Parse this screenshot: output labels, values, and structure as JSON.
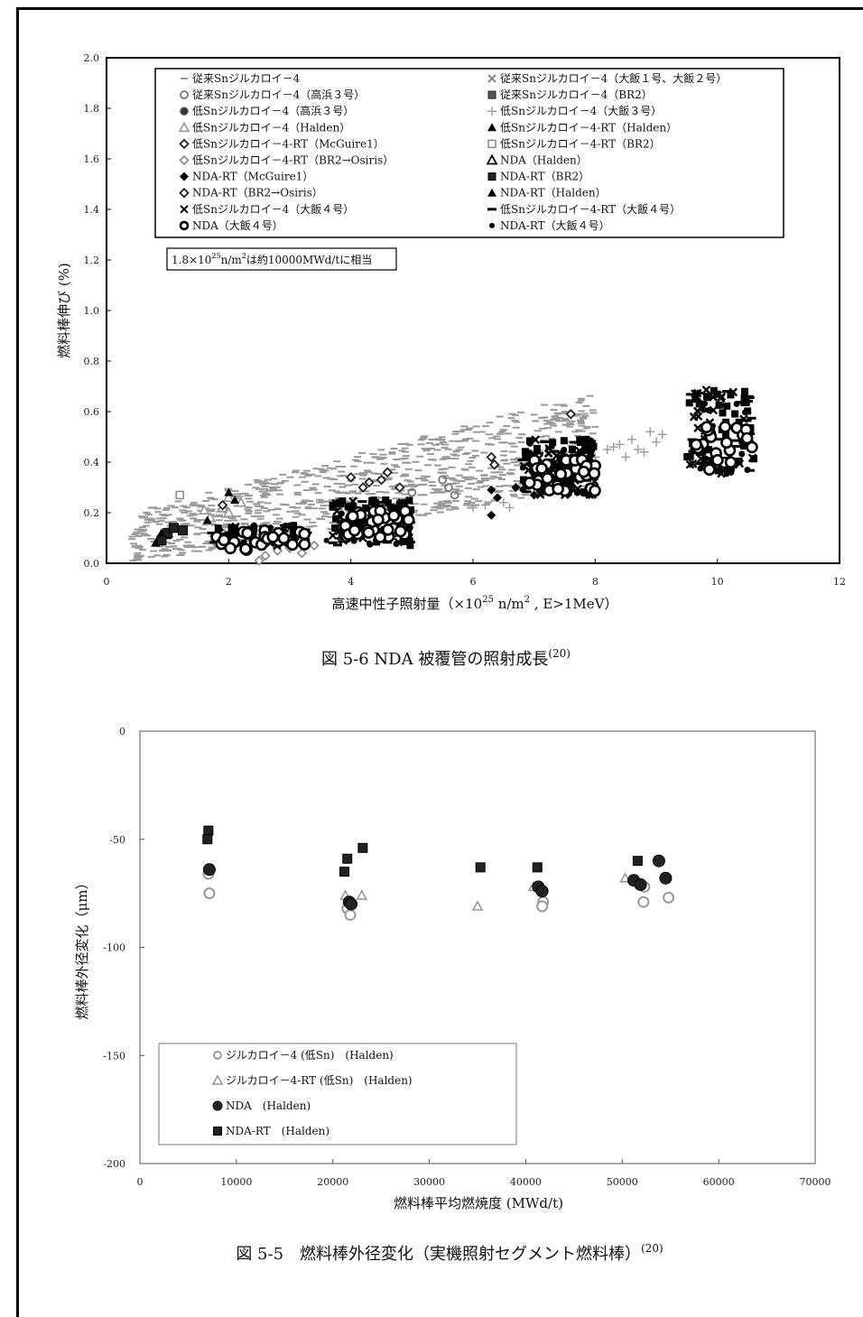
{
  "figure1": {
    "caption": "図 5-6 NDA 被覆管の照射成長",
    "caption_ref": "(20)",
    "chart_data": {
      "type": "scatter",
      "xlabel": "高速中性子照射量（×10",
      "xlabel_sup": "25",
      "xlabel_unit": " n/m",
      "xlabel_sup2": "2",
      "xlabel_tail": " , E>1MeV）",
      "ylabel": "燃料棒伸び (%)",
      "xlim": [
        0,
        12
      ],
      "ylim": [
        0,
        2.0
      ],
      "x_ticks": [
        "0",
        "2",
        "4",
        "6",
        "8",
        "10",
        "12"
      ],
      "y_ticks": [
        "0.0",
        "0.2",
        "0.4",
        "0.6",
        "0.8",
        "1.0",
        "1.2",
        "1.4",
        "1.6",
        "1.8",
        "2.0"
      ],
      "annotation_pre": "1.8×10",
      "annotation_sup": "25",
      "annotation_mid": "n/m",
      "annotation_sup2": "2",
      "annotation_post": "は約10000MWd/tに相当",
      "legend": [
        {
          "label": "従来Snジルカロイ－4",
          "marker": "dash-gray"
        },
        {
          "label": "従来Snジルカロイ－4（大飯１号、大飯２号）",
          "marker": "x-gray"
        },
        {
          "label": "従来Snジルカロイ－4（高浜３号）",
          "marker": "circle-gray"
        },
        {
          "label": "従来Snジルカロイ－4（BR2）",
          "marker": "square-darkgray"
        },
        {
          "label": "低Snジルカロイ－4（高浜３号）",
          "marker": "circle-dark"
        },
        {
          "label": "低Snジルカロイ－4（大飯３号）",
          "marker": "plus-gray"
        },
        {
          "label": "低Snジルカロイ－4（Halden）",
          "marker": "triangle-gray"
        },
        {
          "label": "低Snジルカロイ－4-RT（Halden）",
          "marker": "triangle-black"
        },
        {
          "label": "低Snジルカロイ－4-RT（McGuire1）",
          "marker": "diamond-black-open"
        },
        {
          "label": "低Snジルカロイ－4-RT（BR2）",
          "marker": "square-open-gray"
        },
        {
          "label": "低Snジルカロイ－4-RT（BR2→Osiris）",
          "marker": "diamond-gray-open"
        },
        {
          "label": "NDA（Halden）",
          "marker": "triangle-open"
        },
        {
          "label": "NDA-RT（McGuire1）",
          "marker": "diamond-black"
        },
        {
          "label": "NDA-RT（BR2）",
          "marker": "square-black"
        },
        {
          "label": "NDA-RT（BR2→Osiris）",
          "marker": "diamond-open"
        },
        {
          "label": "NDA-RT（Halden）",
          "marker": "triangle-black"
        },
        {
          "label": "低Snジルカロイ－4（大飯４号）",
          "marker": "x-black"
        },
        {
          "label": "低Snジルカロイ－4-RT（大飯４号）",
          "marker": "dash-black"
        },
        {
          "label": "NDA（大飯４号）",
          "marker": "circle-open-bold"
        },
        {
          "label": "NDA-RT（大飯４号）",
          "marker": "dot-black"
        }
      ],
      "series": [
        {
          "marker": "dash-gray",
          "band": {
            "x": [
              0.4,
              8.0
            ],
            "y_lo_at_x0": 0.0,
            "y_lo_at_x1": 0.3,
            "y_hi_at_x0": 0.2,
            "y_hi_at_x1": 0.68,
            "count": 950
          }
        },
        {
          "marker": "dash-gray",
          "points": [
            [
              7.4,
              0.52
            ],
            [
              7.6,
              0.55
            ],
            [
              7.8,
              0.5
            ],
            [
              8.0,
              0.54
            ]
          ]
        },
        {
          "marker": "circle-gray",
          "points": [
            [
              5.0,
              0.28
            ],
            [
              5.5,
              0.33
            ],
            [
              5.6,
              0.3
            ],
            [
              5.7,
              0.27
            ]
          ]
        },
        {
          "marker": "square-open-gray",
          "points": [
            [
              1.2,
              0.27
            ]
          ]
        },
        {
          "marker": "plus-gray",
          "points": [
            [
              6.0,
              0.22
            ],
            [
              6.2,
              0.23
            ],
            [
              6.5,
              0.24
            ],
            [
              6.6,
              0.22
            ],
            [
              7.0,
              0.43
            ],
            [
              7.5,
              0.44
            ],
            [
              7.8,
              0.4
            ],
            [
              8.0,
              0.42
            ],
            [
              8.2,
              0.45
            ],
            [
              8.4,
              0.47
            ],
            [
              8.6,
              0.49
            ],
            [
              8.7,
              0.45
            ],
            [
              8.9,
              0.52
            ],
            [
              9.0,
              0.48
            ],
            [
              9.1,
              0.51
            ],
            [
              8.8,
              0.44
            ],
            [
              8.5,
              0.42
            ],
            [
              8.3,
              0.46
            ]
          ]
        },
        {
          "marker": "triangle-gray",
          "points": [
            [
              1.6,
              0.21
            ],
            [
              1.9,
              0.22
            ],
            [
              2.0,
              0.2
            ],
            [
              2.2,
              0.24
            ],
            [
              2.0,
              0.26
            ],
            [
              1.7,
              0.18
            ]
          ]
        },
        {
          "marker": "triangle-black",
          "points": [
            [
              0.8,
              0.08
            ],
            [
              0.85,
              0.1
            ],
            [
              0.9,
              0.12
            ],
            [
              1.0,
              0.11
            ],
            [
              1.65,
              0.17
            ],
            [
              2.0,
              0.28
            ],
            [
              2.1,
              0.25
            ]
          ]
        },
        {
          "marker": "square-black",
          "points": [
            [
              1.0,
              0.12
            ],
            [
              1.1,
              0.14
            ],
            [
              1.25,
              0.13
            ],
            [
              0.9,
              0.09
            ]
          ]
        },
        {
          "marker": "diamond-black-open",
          "points": [
            [
              1.9,
              0.23
            ],
            [
              4.0,
              0.34
            ],
            [
              4.2,
              0.3
            ],
            [
              4.3,
              0.32
            ],
            [
              4.5,
              0.33
            ],
            [
              4.6,
              0.36
            ],
            [
              4.8,
              0.3
            ],
            [
              6.3,
              0.42
            ],
            [
              6.35,
              0.39
            ],
            [
              7.6,
              0.59
            ]
          ]
        },
        {
          "marker": "diamond-gray-open",
          "points": [
            [
              2.5,
              0.01
            ],
            [
              2.6,
              0.03
            ],
            [
              2.8,
              0.05
            ],
            [
              3.0,
              0.06
            ],
            [
              3.2,
              0.04
            ],
            [
              3.4,
              0.07
            ]
          ]
        },
        {
          "marker": "diamond-black",
          "points": [
            [
              6.3,
              0.29
            ],
            [
              6.4,
              0.26
            ],
            [
              6.3,
              0.19
            ],
            [
              6.7,
              0.3
            ],
            [
              7.0,
              0.27
            ]
          ]
        },
        {
          "marker": "dot-black",
          "points": [
            [
              3.6,
              0.09
            ],
            [
              3.9,
              0.09
            ],
            [
              4.3,
              0.08
            ]
          ]
        },
        {
          "marker": "cluster-black",
          "clusters": [
            {
              "x": [
                1.7,
                3.3
              ],
              "y": [
                0.07,
                0.15
              ],
              "count": 70
            },
            {
              "x": [
                3.7,
                5.0
              ],
              "y": [
                0.07,
                0.25
              ],
              "count": 120
            },
            {
              "x": [
                6.8,
                8.0
              ],
              "y": [
                0.27,
                0.49
              ],
              "count": 150
            },
            {
              "x": [
                9.5,
                10.6
              ],
              "y": [
                0.35,
                0.69
              ],
              "count": 120
            }
          ]
        },
        {
          "marker": "circle-open-bold",
          "clusters": [
            {
              "x": [
                1.8,
                3.3
              ],
              "y": [
                0.05,
                0.13
              ],
              "count": 26
            },
            {
              "x": [
                3.8,
                5.0
              ],
              "y": [
                0.1,
                0.21
              ],
              "count": 30
            },
            {
              "x": [
                6.9,
                8.0
              ],
              "y": [
                0.28,
                0.41
              ],
              "count": 32
            },
            {
              "x": [
                9.6,
                10.6
              ],
              "y": [
                0.37,
                0.54
              ],
              "count": 20
            }
          ]
        }
      ]
    }
  },
  "figure2": {
    "caption": "図 5-5　燃料棒外径変化（実機照射セグメント燃料棒）",
    "caption_ref": "(20)",
    "chart_data": {
      "type": "scatter",
      "xlabel": "燃料棒平均燃焼度 (MWd/t)",
      "ylabel": "燃料棒外径変化（μm）",
      "xlim": [
        0,
        70000
      ],
      "ylim": [
        -200,
        0
      ],
      "x_ticks": [
        "0",
        "10000",
        "20000",
        "30000",
        "40000",
        "50000",
        "60000",
        "70000"
      ],
      "y_ticks": [
        "0",
        "-50",
        "-100",
        "-150",
        "-200"
      ],
      "legend": [
        {
          "label": "ジルカロイ－4 (低Sn)　(Halden)",
          "marker": "circle-open-gray"
        },
        {
          "label": "ジルカロイ－4-RT (低Sn)　(Halden)",
          "marker": "triangle-open-gray"
        },
        {
          "label": "NDA　(Halden)",
          "marker": "circle-black"
        },
        {
          "label": "NDA-RT　(Halden)",
          "marker": "square-black"
        }
      ],
      "series": [
        {
          "name": "ジルカロイ－4 (低Sn)　(Halden)",
          "marker": "circle-open-gray",
          "x": [
            7200,
            7100,
            21500,
            21800,
            41800,
            41700,
            52300,
            52200,
            54800
          ],
          "y": [
            -75,
            -66,
            -82,
            -85,
            -79,
            -81,
            -72,
            -79,
            -77
          ]
        },
        {
          "name": "ジルカロイ－4-RT (低Sn)　(Halden)",
          "marker": "triangle-open-gray",
          "x": [
            21300,
            23000,
            35000,
            40800,
            50300
          ],
          "y": [
            -76,
            -76,
            -81,
            -72,
            -68
          ]
        },
        {
          "name": "NDA　(Halden)",
          "marker": "circle-black",
          "x": [
            7200,
            21700,
            21900,
            41300,
            41700,
            51200,
            51900,
            53800,
            54500
          ],
          "y": [
            -64,
            -79,
            -80,
            -72,
            -74,
            -69,
            -71,
            -60,
            -68
          ]
        },
        {
          "name": "NDA-RT　(Halden)",
          "marker": "square-black",
          "x": [
            7100,
            7000,
            21200,
            21500,
            23100,
            35300,
            41200,
            51600
          ],
          "y": [
            -46,
            -50,
            -65,
            -59,
            -54,
            -63,
            -63,
            -60
          ]
        }
      ]
    }
  }
}
